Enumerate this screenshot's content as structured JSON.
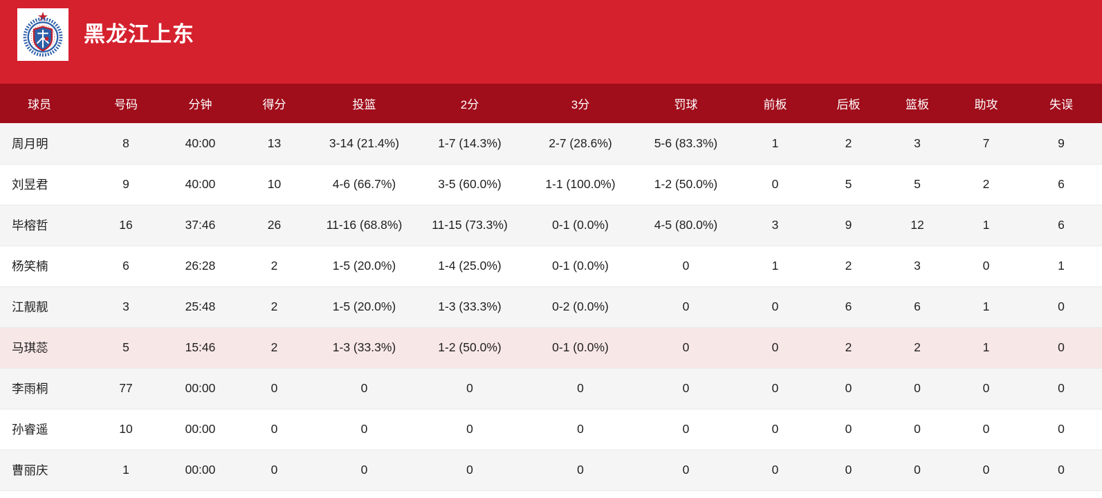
{
  "team": {
    "name": "黑龙江上东",
    "logo_icon": "team-crest-icon"
  },
  "colors": {
    "banner_red": "#d5212e",
    "header_red": "#a00d1b",
    "row_alt": "#f5f5f6",
    "row_highlight": "#f8e7e7",
    "separator": "#e9e9e9",
    "text": "#1f1f1f",
    "logo_blue": "#2b5fa8",
    "logo_red": "#c4202c"
  },
  "table": {
    "columns": [
      {
        "key": "player",
        "label": "球员"
      },
      {
        "key": "number",
        "label": "号码"
      },
      {
        "key": "minutes",
        "label": "分钟"
      },
      {
        "key": "points",
        "label": "得分"
      },
      {
        "key": "fg",
        "label": "投篮"
      },
      {
        "key": "twopt",
        "label": "2分"
      },
      {
        "key": "threept",
        "label": "3分"
      },
      {
        "key": "ft",
        "label": "罚球"
      },
      {
        "key": "oreb",
        "label": "前板"
      },
      {
        "key": "dreb",
        "label": "后板"
      },
      {
        "key": "reb",
        "label": "篮板"
      },
      {
        "key": "ast",
        "label": "助攻"
      },
      {
        "key": "tov",
        "label": "失误"
      }
    ],
    "rows": [
      {
        "highlight": false,
        "cells": [
          "周月明",
          "8",
          "40:00",
          "13",
          "3-14 (21.4%)",
          "1-7 (14.3%)",
          "2-7 (28.6%)",
          "5-6 (83.3%)",
          "1",
          "2",
          "3",
          "7",
          "9"
        ]
      },
      {
        "highlight": false,
        "cells": [
          "刘昱君",
          "9",
          "40:00",
          "10",
          "4-6 (66.7%)",
          "3-5 (60.0%)",
          "1-1 (100.0%)",
          "1-2 (50.0%)",
          "0",
          "5",
          "5",
          "2",
          "6"
        ]
      },
      {
        "highlight": false,
        "cells": [
          "毕榕哲",
          "16",
          "37:46",
          "26",
          "11-16 (68.8%)",
          "11-15 (73.3%)",
          "0-1 (0.0%)",
          "4-5 (80.0%)",
          "3",
          "9",
          "12",
          "1",
          "6"
        ]
      },
      {
        "highlight": false,
        "cells": [
          "杨笑楠",
          "6",
          "26:28",
          "2",
          "1-5 (20.0%)",
          "1-4 (25.0%)",
          "0-1 (0.0%)",
          "0",
          "1",
          "2",
          "3",
          "0",
          "1"
        ]
      },
      {
        "highlight": false,
        "cells": [
          "江靓靓",
          "3",
          "25:48",
          "2",
          "1-5 (20.0%)",
          "1-3 (33.3%)",
          "0-2 (0.0%)",
          "0",
          "0",
          "6",
          "6",
          "1",
          "0"
        ]
      },
      {
        "highlight": true,
        "cells": [
          "马琪蕊",
          "5",
          "15:46",
          "2",
          "1-3 (33.3%)",
          "1-2 (50.0%)",
          "0-1 (0.0%)",
          "0",
          "0",
          "2",
          "2",
          "1",
          "0"
        ]
      },
      {
        "highlight": false,
        "cells": [
          "李雨桐",
          "77",
          "00:00",
          "0",
          "0",
          "0",
          "0",
          "0",
          "0",
          "0",
          "0",
          "0",
          "0"
        ]
      },
      {
        "highlight": false,
        "cells": [
          "孙睿遥",
          "10",
          "00:00",
          "0",
          "0",
          "0",
          "0",
          "0",
          "0",
          "0",
          "0",
          "0",
          "0"
        ]
      },
      {
        "highlight": false,
        "cells": [
          "曹丽庆",
          "1",
          "00:00",
          "0",
          "0",
          "0",
          "0",
          "0",
          "0",
          "0",
          "0",
          "0",
          "0"
        ]
      }
    ]
  }
}
